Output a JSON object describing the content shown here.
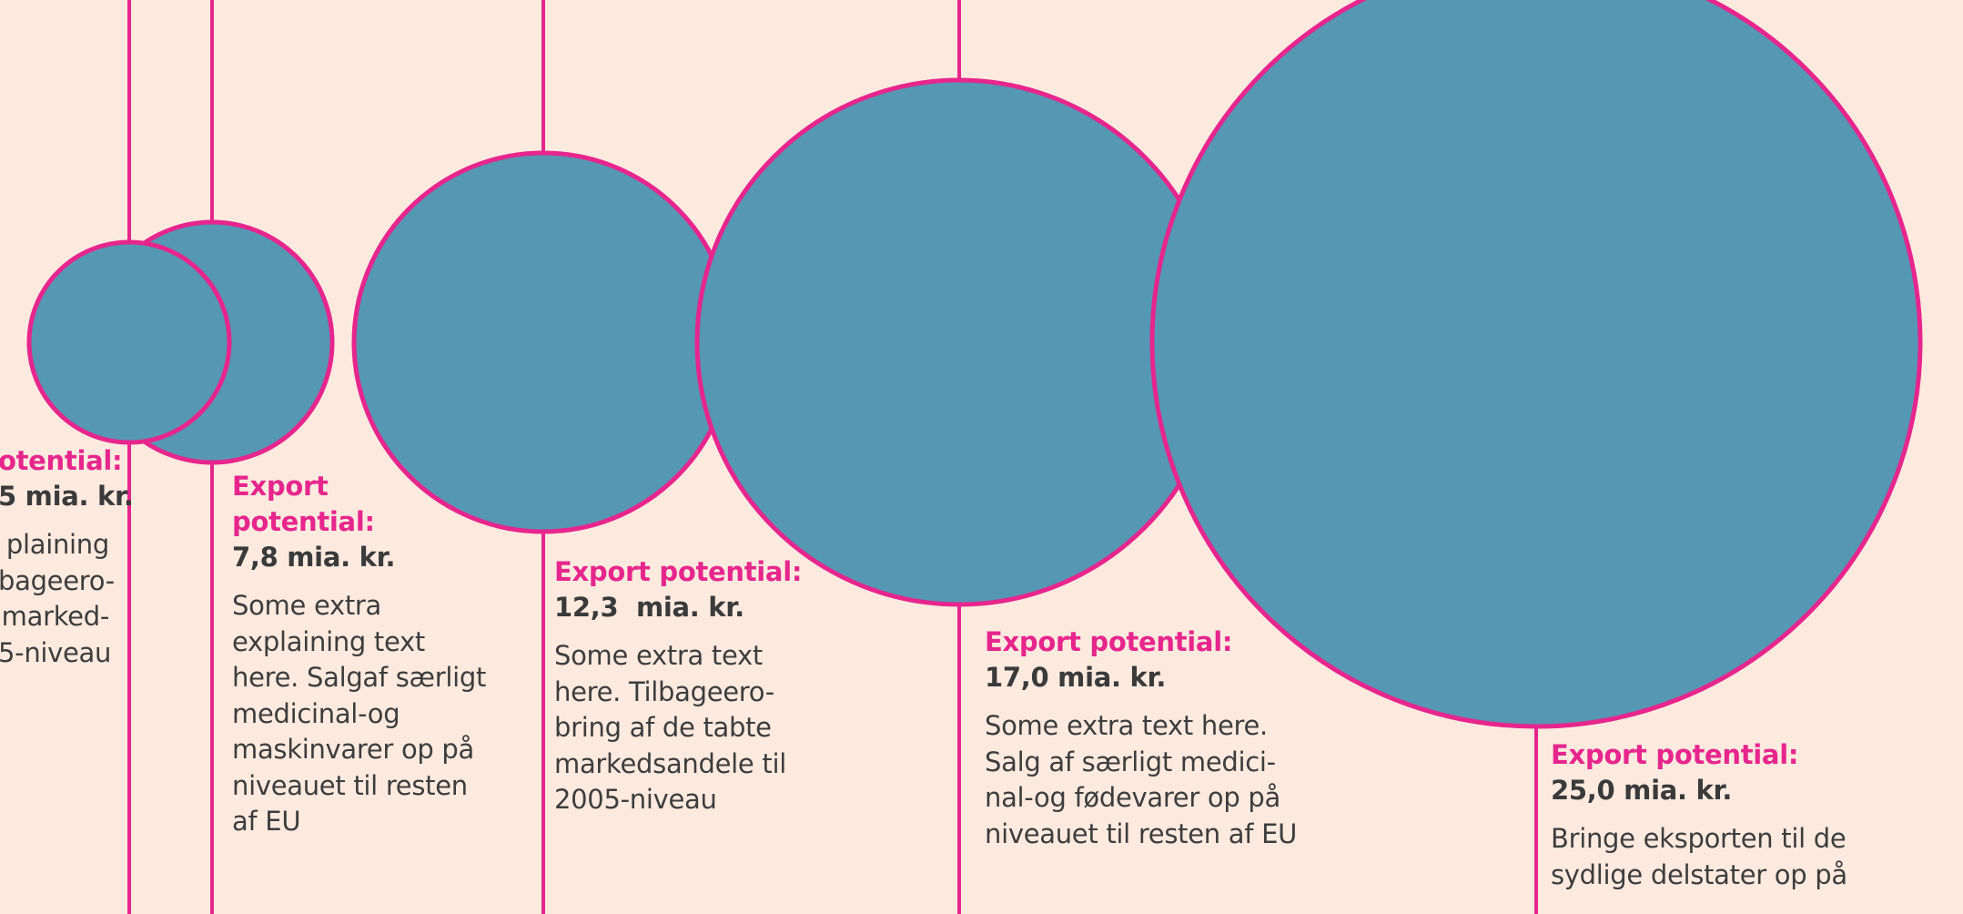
{
  "colors": {
    "background": "#fdeadf",
    "bubble_fill": "#5697b3",
    "accent": "#e6268c",
    "text": "#3d3d3d"
  },
  "chart_data": {
    "type": "bubble",
    "unit": "mia. kr.",
    "items": [
      {
        "label": "Export potential:",
        "value": null,
        "value_text": "",
        "desc": ""
      },
      {
        "label": "otential:",
        "value": null,
        "value_text": "5 mia. kr.",
        "desc": "plaining\nbageero-\nmarked-\n5-niveau"
      },
      {
        "label": "Export\npotential:",
        "value": 7.8,
        "value_text": "7,8 mia. kr.",
        "desc": "Some extra\nexplaining text\nhere. Salgaf særligt\nmedicinal-og\nmaskinvarer op på\nniveauet til resten\naf EU"
      },
      {
        "label": "Export potential:",
        "value": 12.3,
        "value_text": "12,3  mia. kr.",
        "desc": "Some extra text\nhere. Tilbageero-\nbring af de tabte\nmarkedsandele til\n2005-niveau"
      },
      {
        "label": "Export potential:",
        "value": 17.0,
        "value_text": "17,0 mia. kr.",
        "desc": "Some extra text here.\nSalg af særligt medici-\nnal-og fødevarer op på\nniveauet til resten af EU"
      },
      {
        "label": "Export potential:",
        "value": 25.0,
        "value_text": "25,0 mia. kr.",
        "desc": "Bringe eksporten til de\nsydlige delstater op på"
      }
    ]
  }
}
